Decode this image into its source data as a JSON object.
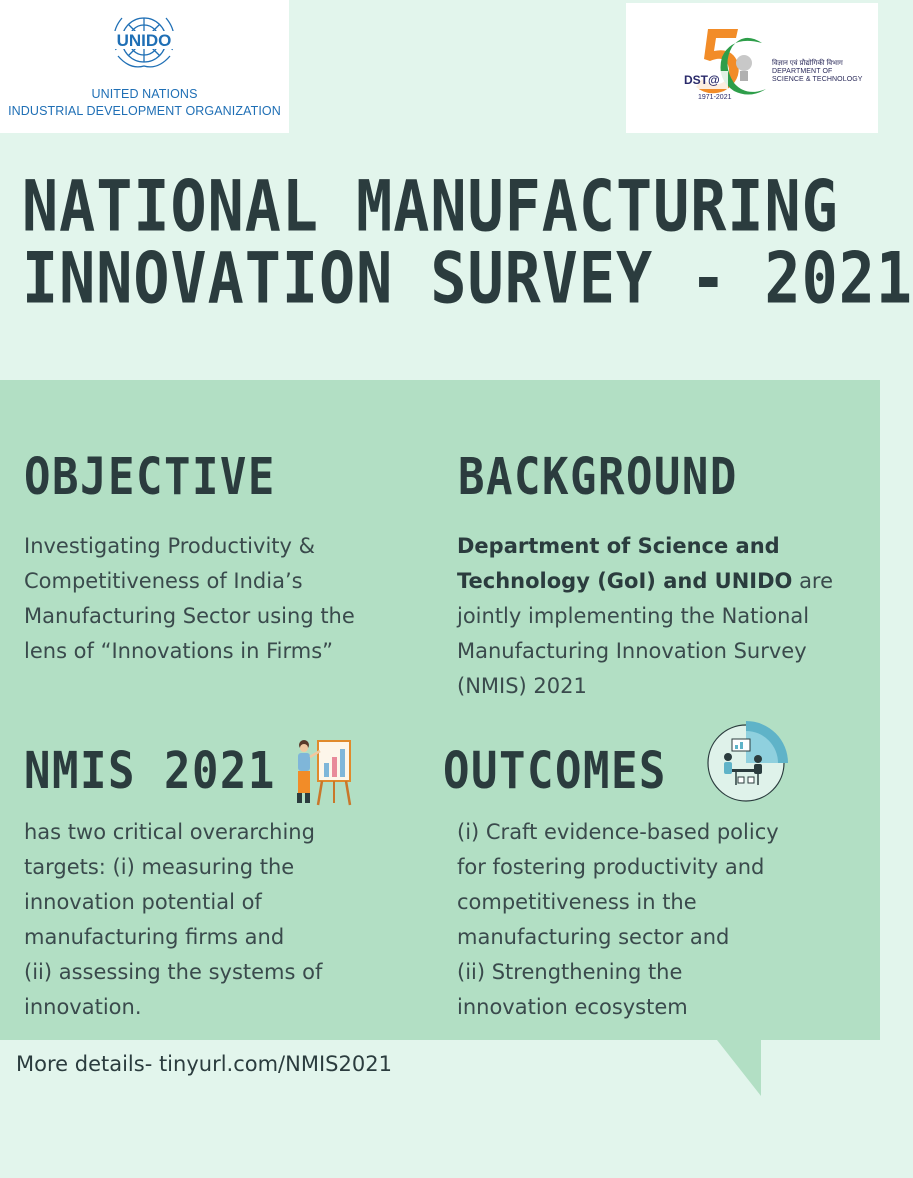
{
  "logos": {
    "unido": {
      "wordmark": "UNIDO",
      "line1": "UNITED NATIONS",
      "line2": "INDUSTRIAL DEVELOPMENT ORGANIZATION",
      "color": "#1f6fb5"
    },
    "dst": {
      "badge": "DST@",
      "years": "1971-2021",
      "hindi": "विज्ञान एवं प्रौद्योगिकी विभाग",
      "dept_line1": "DEPARTMENT OF",
      "dept_line2": "SCIENCE & TECHNOLOGY",
      "number": "50"
    }
  },
  "title": {
    "line1": "NATIONAL MANUFACTURING",
    "line2": "INNOVATION SURVEY - 2021"
  },
  "objective": {
    "heading": "OBJECTIVE",
    "lines": [
      "Investigating Productivity &",
      "Competitiveness of India’s",
      "Manufacturing Sector using the",
      "lens of “Innovations in Firms”"
    ]
  },
  "background": {
    "heading": "BACKGROUND",
    "bold_line1": "Department of Science and",
    "bold_line2": "Technology (GoI) and UNIDO",
    "line2_rest": " are",
    "lines": [
      "jointly implementing the National",
      "Manufacturing Innovation Survey",
      "(NMIS) 2021"
    ]
  },
  "nmis": {
    "heading": "NMIS 2021",
    "lines": [
      "has two critical overarching",
      "targets: (i) measuring the",
      "innovation potential of",
      "manufacturing firms and",
      "(ii) assessing the systems of",
      "innovation."
    ],
    "icon": "presentation-easel-icon"
  },
  "outcomes": {
    "heading": "OUTCOMES",
    "lines": [
      "(i) Craft evidence-based policy",
      "for fostering productivity and",
      "competitiveness in the",
      "manufacturing sector and",
      "(ii) Strengthening the",
      "innovation ecosystem"
    ],
    "icon": "team-analytics-icon"
  },
  "footer": "More details- tinyurl.com/NMIS2021",
  "colors": {
    "background": "#e2f5ec",
    "panel": "#b2dfc4",
    "heading": "#2b3c3e",
    "unido_blue": "#1f6fb5",
    "dst_orange": "#f28c28",
    "dst_green": "#2e9e4a"
  }
}
